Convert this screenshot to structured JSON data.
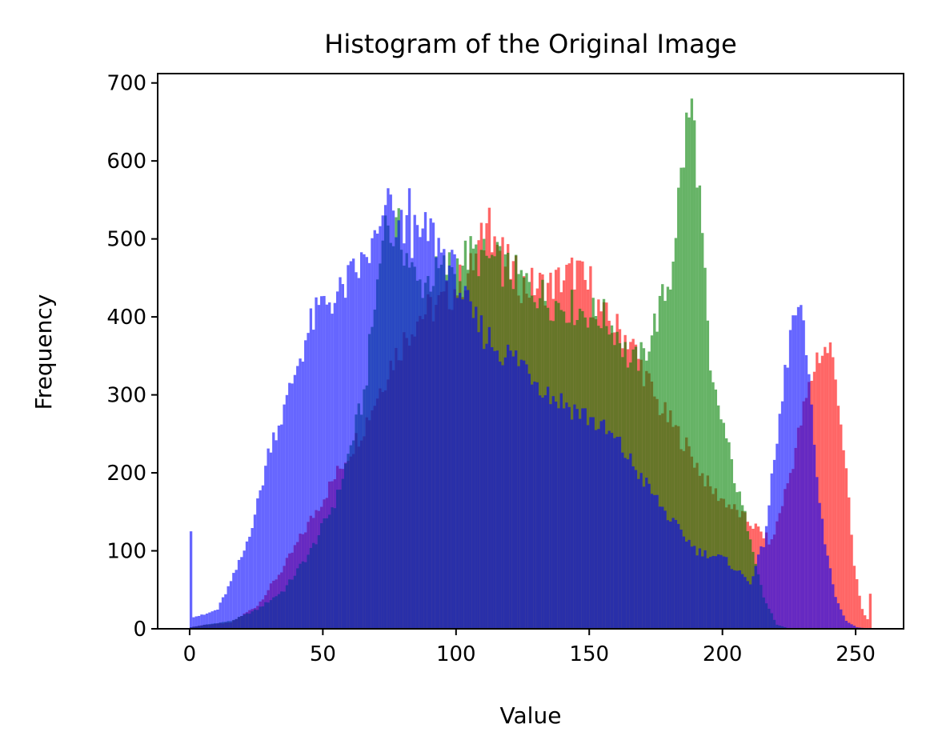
{
  "chart_data": {
    "type": "bar",
    "title": "Histogram of the Original Image",
    "xlabel": "Value",
    "ylabel": "Frequency",
    "xlim": [
      -12,
      268
    ],
    "ylim": [
      0,
      712
    ],
    "xticks": [
      0,
      50,
      100,
      150,
      200,
      250
    ],
    "yticks": [
      0,
      100,
      200,
      300,
      400,
      500,
      600,
      700
    ],
    "grid": false,
    "opacity": 0.6,
    "series": [
      {
        "color": "#ff0000",
        "anchors": [
          [
            0,
            2
          ],
          [
            5,
            5
          ],
          [
            15,
            8
          ],
          [
            25,
            30
          ],
          [
            35,
            80
          ],
          [
            45,
            140
          ],
          [
            55,
            200
          ],
          [
            65,
            260
          ],
          [
            75,
            340
          ],
          [
            85,
            400
          ],
          [
            95,
            420
          ],
          [
            105,
            460
          ],
          [
            112,
            520
          ],
          [
            118,
            470
          ],
          [
            125,
            440
          ],
          [
            135,
            440
          ],
          [
            145,
            460
          ],
          [
            155,
            400
          ],
          [
            165,
            370
          ],
          [
            175,
            290
          ],
          [
            185,
            240
          ],
          [
            195,
            180
          ],
          [
            205,
            150
          ],
          [
            212,
            130
          ],
          [
            218,
            110
          ],
          [
            225,
            200
          ],
          [
            230,
            280
          ],
          [
            235,
            350
          ],
          [
            240,
            360
          ],
          [
            243,
            300
          ],
          [
            246,
            200
          ],
          [
            249,
            80
          ],
          [
            252,
            25
          ],
          [
            255,
            5
          ]
        ],
        "spikes": [
          [
            255,
            45
          ],
          [
            112,
            540
          ],
          [
            150,
            465
          ]
        ]
      },
      {
        "color": "#008000",
        "anchors": [
          [
            0,
            2
          ],
          [
            5,
            5
          ],
          [
            15,
            10
          ],
          [
            25,
            25
          ],
          [
            35,
            50
          ],
          [
            45,
            100
          ],
          [
            55,
            170
          ],
          [
            65,
            300
          ],
          [
            72,
            500
          ],
          [
            78,
            510
          ],
          [
            85,
            440
          ],
          [
            95,
            460
          ],
          [
            105,
            480
          ],
          [
            115,
            470
          ],
          [
            125,
            445
          ],
          [
            135,
            420
          ],
          [
            145,
            410
          ],
          [
            155,
            400
          ],
          [
            160,
            380
          ],
          [
            165,
            340
          ],
          [
            170,
            350
          ],
          [
            175,
            400
          ],
          [
            180,
            450
          ],
          [
            183,
            550
          ],
          [
            186,
            640
          ],
          [
            188,
            670
          ],
          [
            190,
            600
          ],
          [
            192,
            500
          ],
          [
            195,
            320
          ],
          [
            200,
            260
          ],
          [
            205,
            180
          ],
          [
            210,
            120
          ],
          [
            215,
            40
          ],
          [
            220,
            5
          ],
          [
            225,
            0
          ]
        ],
        "spikes": [
          [
            188,
            680
          ],
          [
            73,
            530
          ]
        ]
      },
      {
        "color": "#0000ff",
        "anchors": [
          [
            0,
            15
          ],
          [
            5,
            18
          ],
          [
            10,
            25
          ],
          [
            15,
            60
          ],
          [
            20,
            100
          ],
          [
            25,
            160
          ],
          [
            30,
            240
          ],
          [
            35,
            280
          ],
          [
            40,
            340
          ],
          [
            45,
            390
          ],
          [
            50,
            420
          ],
          [
            55,
            425
          ],
          [
            60,
            450
          ],
          [
            65,
            470
          ],
          [
            70,
            500
          ],
          [
            75,
            530
          ],
          [
            80,
            510
          ],
          [
            85,
            500
          ],
          [
            90,
            510
          ],
          [
            95,
            480
          ],
          [
            100,
            450
          ],
          [
            105,
            400
          ],
          [
            110,
            380
          ],
          [
            115,
            360
          ],
          [
            120,
            350
          ],
          [
            125,
            340
          ],
          [
            130,
            320
          ],
          [
            135,
            300
          ],
          [
            140,
            290
          ],
          [
            150,
            270
          ],
          [
            160,
            240
          ],
          [
            170,
            190
          ],
          [
            180,
            140
          ],
          [
            190,
            100
          ],
          [
            200,
            90
          ],
          [
            210,
            60
          ],
          [
            215,
            110
          ],
          [
            220,
            240
          ],
          [
            225,
            380
          ],
          [
            228,
            410
          ],
          [
            231,
            360
          ],
          [
            234,
            230
          ],
          [
            238,
            110
          ],
          [
            242,
            40
          ],
          [
            246,
            10
          ],
          [
            250,
            2
          ],
          [
            255,
            0
          ]
        ],
        "spikes": [
          [
            0,
            125
          ],
          [
            74,
            565
          ],
          [
            82,
            565
          ]
        ]
      }
    ]
  }
}
